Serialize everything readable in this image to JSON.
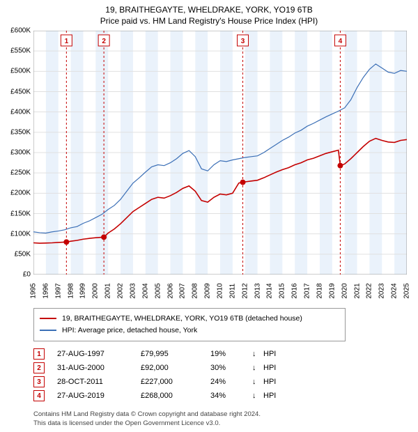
{
  "chart": {
    "title_line1": "19, BRAITHEGAYTE, WHELDRAKE, YORK, YO19 6TB",
    "title_line2": "Price paid vs. HM Land Registry's House Price Index (HPI)",
    "title_fontsize": 12,
    "plot_bg": "#ffffff",
    "alt_band_color": "#eaf2fb",
    "ylim": [
      0,
      600000
    ],
    "ytick_step": 50000,
    "ytick_labels": [
      "£0",
      "£50K",
      "£100K",
      "£150K",
      "£200K",
      "£250K",
      "£300K",
      "£350K",
      "£400K",
      "£450K",
      "£500K",
      "£550K",
      "£600K"
    ],
    "xlim": [
      1995,
      2025
    ],
    "xtick_step": 1,
    "xtick_labels": [
      "1995",
      "1996",
      "1997",
      "1998",
      "1999",
      "2000",
      "2001",
      "2002",
      "2003",
      "2004",
      "2005",
      "2006",
      "2007",
      "2008",
      "2009",
      "2010",
      "2011",
      "2012",
      "2013",
      "2014",
      "2015",
      "2016",
      "2017",
      "2018",
      "2019",
      "2020",
      "2021",
      "2022",
      "2023",
      "2024",
      "2025"
    ],
    "grid_color": "#e0e0e0",
    "axis_color": "#999999",
    "marker_line_color": "#c40000",
    "marker_box_border": "#c40000",
    "marker_box_text": "#c40000",
    "series": {
      "hpi": {
        "label": "HPI: Average price, detached house, York",
        "color": "#3b6fb6",
        "line_width": 1.2,
        "data": [
          [
            1995,
            105000
          ],
          [
            1995.5,
            103000
          ],
          [
            1996,
            102000
          ],
          [
            1996.5,
            105000
          ],
          [
            1997,
            107000
          ],
          [
            1997.5,
            110000
          ],
          [
            1998,
            115000
          ],
          [
            1998.5,
            118000
          ],
          [
            1999,
            126000
          ],
          [
            1999.5,
            132000
          ],
          [
            2000,
            140000
          ],
          [
            2000.5,
            148000
          ],
          [
            2001,
            160000
          ],
          [
            2001.5,
            170000
          ],
          [
            2002,
            185000
          ],
          [
            2002.5,
            205000
          ],
          [
            2003,
            225000
          ],
          [
            2003.5,
            238000
          ],
          [
            2004,
            252000
          ],
          [
            2004.5,
            265000
          ],
          [
            2005,
            270000
          ],
          [
            2005.5,
            268000
          ],
          [
            2006,
            275000
          ],
          [
            2006.5,
            285000
          ],
          [
            2007,
            298000
          ],
          [
            2007.5,
            305000
          ],
          [
            2008,
            290000
          ],
          [
            2008.5,
            260000
          ],
          [
            2009,
            255000
          ],
          [
            2009.5,
            270000
          ],
          [
            2010,
            280000
          ],
          [
            2010.5,
            278000
          ],
          [
            2011,
            282000
          ],
          [
            2011.5,
            285000
          ],
          [
            2012,
            288000
          ],
          [
            2012.5,
            290000
          ],
          [
            2013,
            292000
          ],
          [
            2013.5,
            300000
          ],
          [
            2014,
            310000
          ],
          [
            2014.5,
            320000
          ],
          [
            2015,
            330000
          ],
          [
            2015.5,
            338000
          ],
          [
            2016,
            348000
          ],
          [
            2016.5,
            355000
          ],
          [
            2017,
            365000
          ],
          [
            2017.5,
            372000
          ],
          [
            2018,
            380000
          ],
          [
            2018.5,
            388000
          ],
          [
            2019,
            395000
          ],
          [
            2019.5,
            402000
          ],
          [
            2020,
            410000
          ],
          [
            2020.5,
            430000
          ],
          [
            2021,
            460000
          ],
          [
            2021.5,
            485000
          ],
          [
            2022,
            505000
          ],
          [
            2022.5,
            518000
          ],
          [
            2023,
            508000
          ],
          [
            2023.5,
            498000
          ],
          [
            2024,
            495000
          ],
          [
            2024.5,
            502000
          ],
          [
            2025,
            500000
          ]
        ]
      },
      "property": {
        "label": "19, BRAITHEGAYTE, WHELDRAKE, YORK, YO19 6TB (detached house)",
        "color": "#c40000",
        "line_width": 1.6,
        "data": [
          [
            1995,
            78000
          ],
          [
            1995.5,
            77000
          ],
          [
            1996,
            77500
          ],
          [
            1996.5,
            78000
          ],
          [
            1997,
            79000
          ],
          [
            1997.65,
            79995
          ],
          [
            1998,
            82000
          ],
          [
            1998.5,
            84000
          ],
          [
            1999,
            87000
          ],
          [
            1999.5,
            89000
          ],
          [
            2000,
            90500
          ],
          [
            2000.66,
            92000
          ],
          [
            2001,
            102000
          ],
          [
            2001.5,
            112000
          ],
          [
            2002,
            125000
          ],
          [
            2002.5,
            140000
          ],
          [
            2003,
            155000
          ],
          [
            2003.5,
            165000
          ],
          [
            2004,
            175000
          ],
          [
            2004.5,
            185000
          ],
          [
            2005,
            190000
          ],
          [
            2005.5,
            188000
          ],
          [
            2006,
            194000
          ],
          [
            2006.5,
            202000
          ],
          [
            2007,
            212000
          ],
          [
            2007.5,
            218000
          ],
          [
            2008,
            205000
          ],
          [
            2008.5,
            182000
          ],
          [
            2009,
            178000
          ],
          [
            2009.5,
            190000
          ],
          [
            2010,
            198000
          ],
          [
            2010.5,
            196000
          ],
          [
            2011,
            200000
          ],
          [
            2011.5,
            225000
          ],
          [
            2011.82,
            227000
          ],
          [
            2012,
            228000
          ],
          [
            2012.5,
            230000
          ],
          [
            2013,
            232000
          ],
          [
            2013.5,
            238000
          ],
          [
            2014,
            245000
          ],
          [
            2014.5,
            252000
          ],
          [
            2015,
            258000
          ],
          [
            2015.5,
            263000
          ],
          [
            2016,
            270000
          ],
          [
            2016.5,
            275000
          ],
          [
            2017,
            282000
          ],
          [
            2017.5,
            286000
          ],
          [
            2018,
            292000
          ],
          [
            2018.5,
            298000
          ],
          [
            2019,
            302000
          ],
          [
            2019.5,
            306000
          ],
          [
            2019.65,
            268000
          ],
          [
            2020,
            272000
          ],
          [
            2020.5,
            285000
          ],
          [
            2021,
            300000
          ],
          [
            2021.5,
            315000
          ],
          [
            2022,
            328000
          ],
          [
            2022.5,
            335000
          ],
          [
            2023,
            330000
          ],
          [
            2023.5,
            326000
          ],
          [
            2024,
            325000
          ],
          [
            2024.5,
            330000
          ],
          [
            2025,
            332000
          ]
        ]
      }
    },
    "markers": [
      {
        "n": "1",
        "x": 1997.65,
        "y": 79995
      },
      {
        "n": "2",
        "x": 2000.66,
        "y": 92000
      },
      {
        "n": "3",
        "x": 2011.82,
        "y": 227000
      },
      {
        "n": "4",
        "x": 2019.65,
        "y": 268000
      }
    ]
  },
  "legend": {
    "items": [
      {
        "key": "property"
      },
      {
        "key": "hpi"
      }
    ]
  },
  "transactions": [
    {
      "n": "1",
      "date": "27-AUG-1997",
      "price": "£79,995",
      "pct": "19%",
      "arrow": "↓",
      "suffix": "HPI"
    },
    {
      "n": "2",
      "date": "31-AUG-2000",
      "price": "£92,000",
      "pct": "30%",
      "arrow": "↓",
      "suffix": "HPI"
    },
    {
      "n": "3",
      "date": "28-OCT-2011",
      "price": "£227,000",
      "pct": "24%",
      "arrow": "↓",
      "suffix": "HPI"
    },
    {
      "n": "4",
      "date": "27-AUG-2019",
      "price": "£268,000",
      "pct": "34%",
      "arrow": "↓",
      "suffix": "HPI"
    }
  ],
  "footer": {
    "line1": "Contains HM Land Registry data © Crown copyright and database right 2024.",
    "line2": "This data is licensed under the Open Government Licence v3.0."
  }
}
